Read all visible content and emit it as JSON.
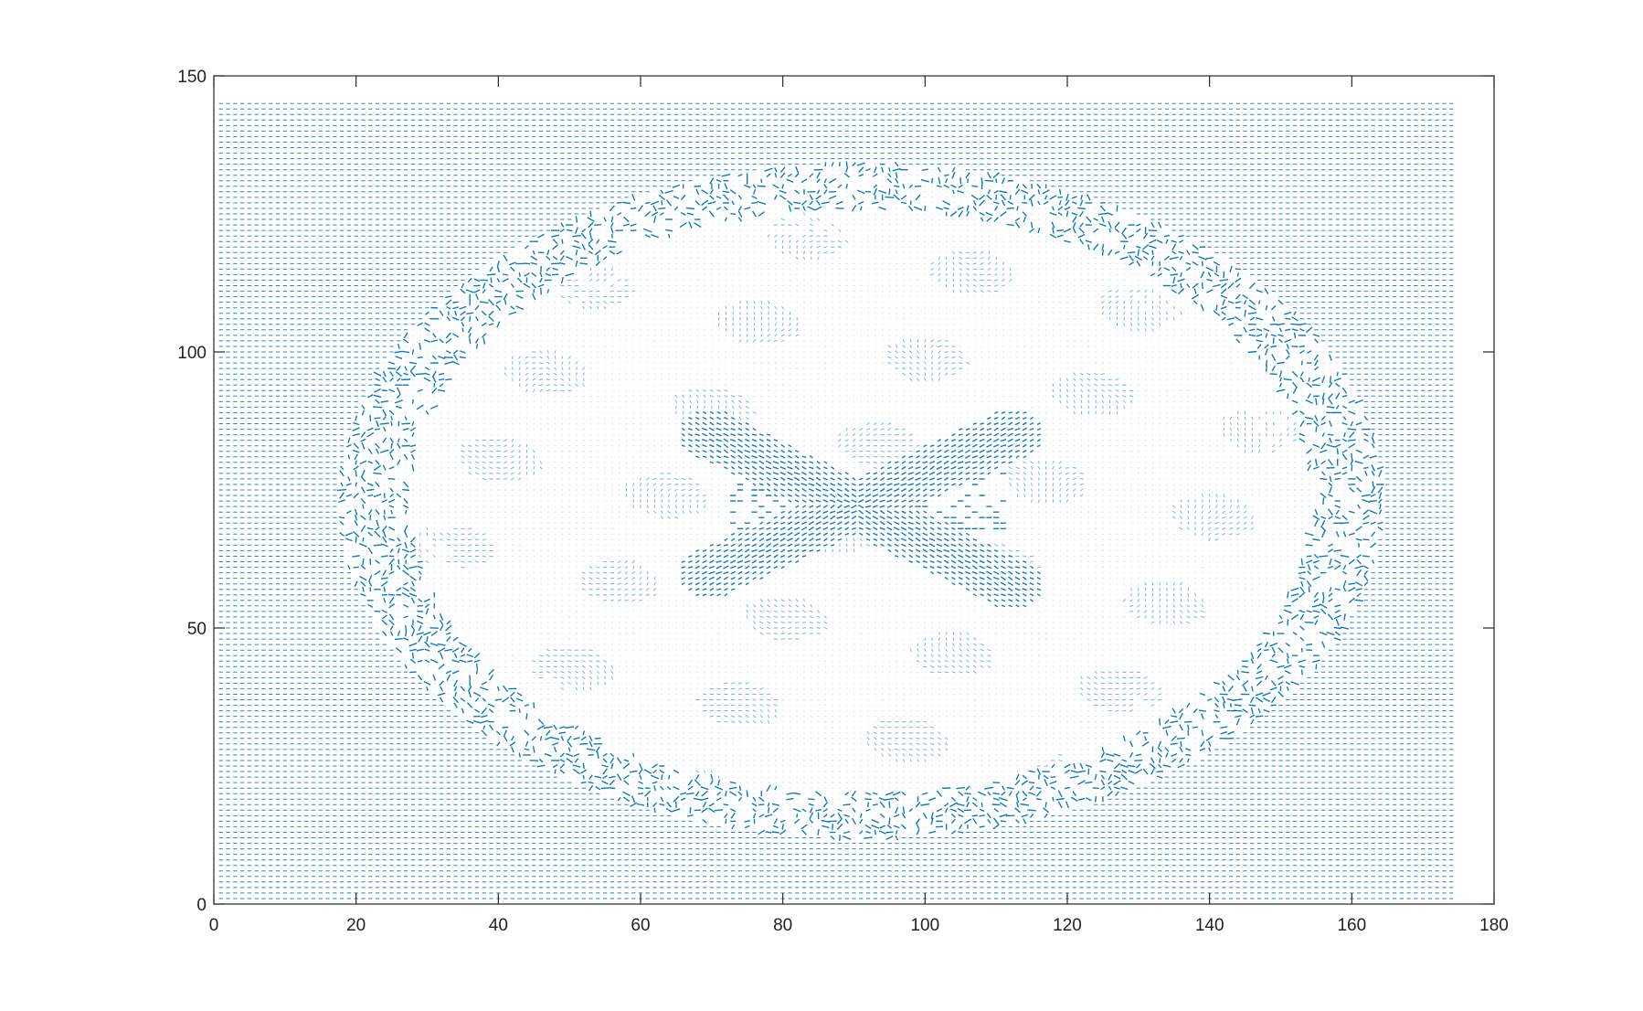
{
  "chart_data": {
    "type": "quiver",
    "title": "",
    "xlabel": "",
    "ylabel": "",
    "xlim": [
      0,
      180
    ],
    "ylim": [
      0,
      150
    ],
    "x_ticks": [
      0,
      20,
      40,
      60,
      80,
      100,
      120,
      140,
      160,
      180
    ],
    "y_ticks": [
      0,
      50,
      100,
      150
    ],
    "x_tick_labels": [
      "0",
      "20",
      "40",
      "60",
      "80",
      "100",
      "120",
      "140",
      "160",
      "180"
    ],
    "y_tick_labels": [
      "0",
      "50",
      "100",
      "150"
    ],
    "grid": false,
    "legend": "none",
    "series": [
      {
        "color": "#0072BD",
        "grid_x_range": [
          1,
          174
        ],
        "grid_y_range": [
          1,
          145
        ],
        "grid_step": 1,
        "background_direction": "horizontal",
        "features": [
          {
            "label": "head outline ellipse",
            "center": [
              91,
              73
            ],
            "radii": [
              72,
              60
            ]
          },
          {
            "label": "inner boundary ellipse",
            "center": [
              91,
              73
            ],
            "radii": [
              63,
              53
            ]
          },
          {
            "label": "central cross strand A",
            "from": [
              70,
              85
            ],
            "to": [
              112,
              58
            ]
          },
          {
            "label": "central cross strand B",
            "from": [
              70,
              60
            ],
            "to": [
              112,
              85
            ]
          }
        ]
      }
    ]
  }
}
